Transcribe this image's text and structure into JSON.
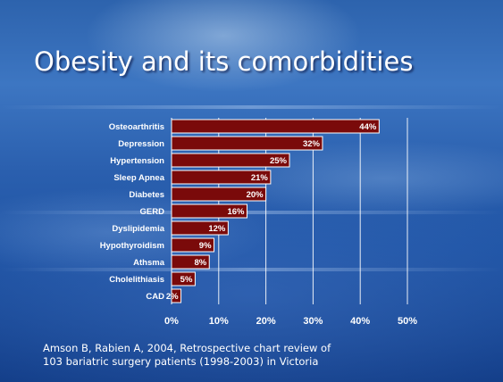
{
  "slide": {
    "title": "Obesity and its comorbidities",
    "citation_line1": "Amson B, Rabien A, 2004, Retrospective chart review of",
    "citation_line2": "103 bariatric surgery patients (1998-2003) in Victoria"
  },
  "colors": {
    "bar_fill": "#7a0a0a",
    "bar_stroke": "#ffffff",
    "text": "#ffffff",
    "gridline": "#ffffff"
  },
  "chart_data": {
    "type": "bar",
    "orientation": "horizontal",
    "categories": [
      "Osteoarthritis",
      "Depression",
      "Hypertension",
      "Sleep Apnea",
      "Diabetes",
      "GERD",
      "Dyslipidemia",
      "Hypothyroidism",
      "Athsma",
      "Cholelithiasis",
      "CAD"
    ],
    "values": [
      44,
      32,
      25,
      21,
      20,
      16,
      12,
      9,
      8,
      5,
      2
    ],
    "data_labels": [
      "44%",
      "32%",
      "25%",
      "21%",
      "20%",
      "16%",
      "12%",
      "9%",
      "8%",
      "5%",
      "2%"
    ],
    "xlim": [
      0,
      50
    ],
    "xticks": [
      0,
      10,
      20,
      30,
      40,
      50
    ],
    "xtick_labels": [
      "0%",
      "10%",
      "20%",
      "30%",
      "40%",
      "50%"
    ],
    "grid": "vertical",
    "legend": "none"
  }
}
